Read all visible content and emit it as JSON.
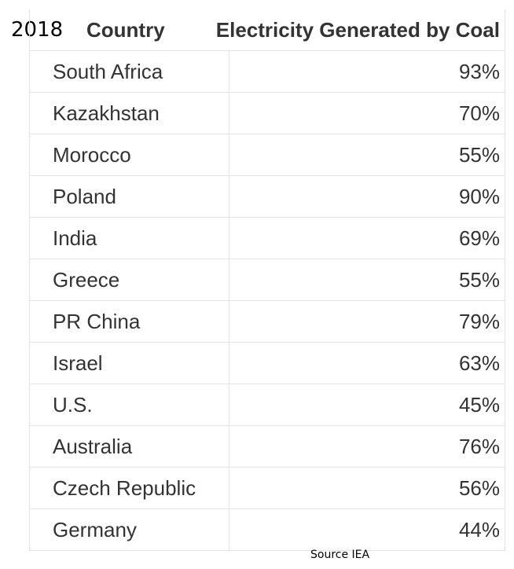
{
  "chart_data": {
    "type": "table",
    "year": "2018",
    "columns": [
      "Country",
      "Electricity Generated by Coal"
    ],
    "rows": [
      {
        "country": "South Africa",
        "value": "93%"
      },
      {
        "country": "Kazakhstan",
        "value": "70%"
      },
      {
        "country": "Morocco",
        "value": "55%"
      },
      {
        "country": "Poland",
        "value": "90%"
      },
      {
        "country": "India",
        "value": "69%"
      },
      {
        "country": "Greece",
        "value": "55%"
      },
      {
        "country": "PR China",
        "value": "79%"
      },
      {
        "country": "Israel",
        "value": "63%"
      },
      {
        "country": "U.S.",
        "value": "45%"
      },
      {
        "country": "Australia",
        "value": "76%"
      },
      {
        "country": "Czech Republic",
        "value": "56%"
      },
      {
        "country": "Germany",
        "value": "44%"
      }
    ],
    "source": "Source IEA"
  }
}
